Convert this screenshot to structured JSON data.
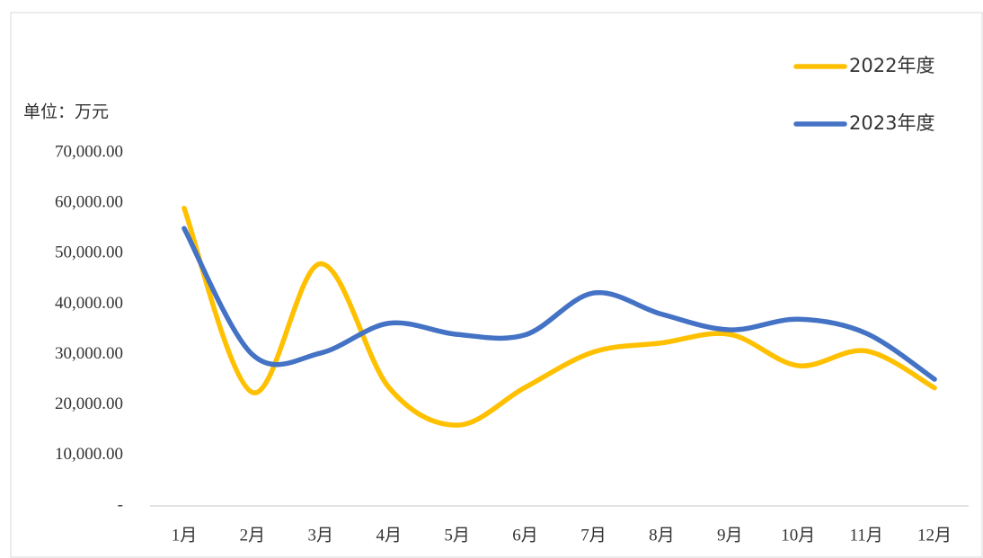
{
  "chart_data": {
    "type": "line",
    "unit_label": "单位：万元",
    "categories": [
      "1月",
      "2月",
      "3月",
      "4月",
      "5月",
      "6月",
      "7月",
      "8月",
      "9月",
      "10月",
      "11月",
      "12月"
    ],
    "series": [
      {
        "name": "2022年度",
        "color": "#ffc000",
        "values": [
          59000,
          22500,
          48000,
          23500,
          16000,
          23500,
          30500,
          32300,
          34000,
          27800,
          30700,
          23400
        ]
      },
      {
        "name": "2023年度",
        "color": "#4472c4",
        "values": [
          55000,
          30000,
          30300,
          36200,
          34000,
          33900,
          42200,
          38000,
          34900,
          37000,
          34200,
          25100
        ]
      }
    ],
    "ylim": [
      0,
      70000
    ],
    "yticks": [
      {
        "value": 0,
        "label": "-"
      },
      {
        "value": 10000,
        "label": "10,000.00"
      },
      {
        "value": 20000,
        "label": "20,000.00"
      },
      {
        "value": 30000,
        "label": "30,000.00"
      },
      {
        "value": 40000,
        "label": "40,000.00"
      },
      {
        "value": 50000,
        "label": "50,000.00"
      },
      {
        "value": 60000,
        "label": "60,000.00"
      },
      {
        "value": 70000,
        "label": "70,000.00"
      }
    ],
    "smooth": true,
    "grid": false,
    "legend": "top-right"
  }
}
